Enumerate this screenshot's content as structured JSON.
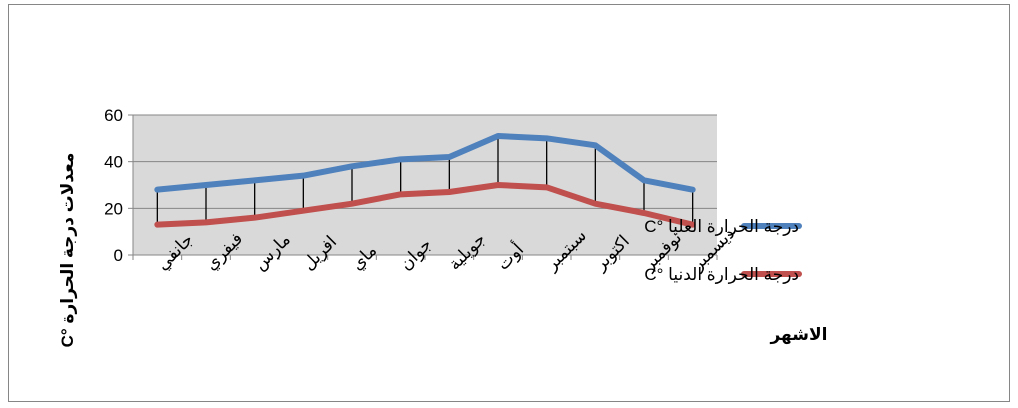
{
  "chart_data": {
    "type": "line",
    "title": "",
    "xlabel": "الاشهر",
    "ylabel": "معدلات درجة الحرارة °C",
    "ylim": [
      0,
      60
    ],
    "yticks": [
      0,
      20,
      40,
      60
    ],
    "grid": true,
    "hi_lo_lines": true,
    "legend_position": "right",
    "categories": [
      "جانفي",
      "فيفري",
      "مارس",
      "افريل",
      "ماي",
      "جوان",
      "جويلية",
      "أوت",
      "سبتمبر",
      "اكتوبر",
      "نوفمبر",
      "ديسمبر"
    ],
    "series": [
      {
        "name": "درجة الحرارة العليا °C",
        "color": "#4f81bd",
        "values": [
          28,
          30,
          32,
          34,
          38,
          41,
          42,
          51,
          50,
          47,
          32,
          28
        ]
      },
      {
        "name": "درجة الحرارة الدنيا °C",
        "color": "#c0504d",
        "values": [
          13,
          14,
          16,
          19,
          22,
          26,
          27,
          30,
          29,
          22,
          18,
          13
        ]
      }
    ]
  }
}
